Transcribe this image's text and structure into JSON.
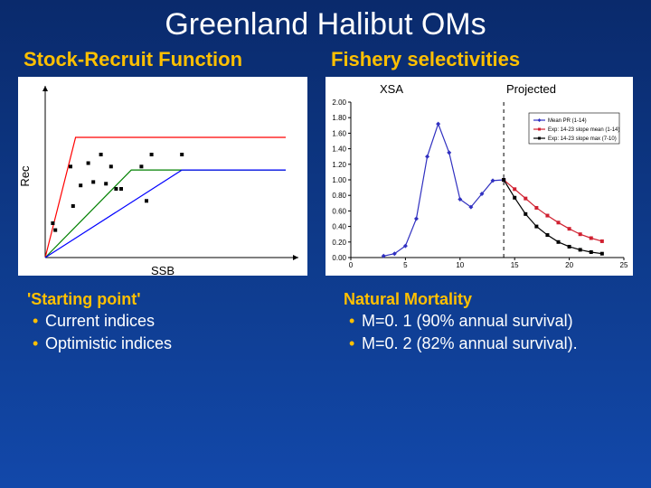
{
  "title": "Greenland Halibut OMs",
  "left": {
    "heading": "Stock-Recruit Function",
    "ylabel": "Rec",
    "xlabel": "SSB",
    "chart": {
      "type": "stock-recruit",
      "background": "#ffffff",
      "axis_color": "#000000",
      "xlim": [
        0,
        10
      ],
      "ylim": [
        0,
        10
      ],
      "points": {
        "marker": "square",
        "size": 4,
        "color": "#000000",
        "xy": [
          [
            0.3,
            2.0
          ],
          [
            0.4,
            1.6
          ],
          [
            1.0,
            5.3
          ],
          [
            1.1,
            3.0
          ],
          [
            1.4,
            4.2
          ],
          [
            1.7,
            5.5
          ],
          [
            1.9,
            4.4
          ],
          [
            2.2,
            6.0
          ],
          [
            2.4,
            4.3
          ],
          [
            2.6,
            5.3
          ],
          [
            2.8,
            4.0
          ],
          [
            3.0,
            4.0
          ],
          [
            3.8,
            5.3
          ],
          [
            4.0,
            3.3
          ],
          [
            4.2,
            6.0
          ],
          [
            5.4,
            6.0
          ]
        ]
      },
      "lines": [
        {
          "color": "#ff0000",
          "width": 1.2,
          "segments": [
            [
              0,
              0
            ],
            [
              1.2,
              7.0
            ],
            [
              9.5,
              7.0
            ]
          ]
        },
        {
          "color": "#008000",
          "width": 1.2,
          "segments": [
            [
              0,
              0
            ],
            [
              3.4,
              5.1
            ],
            [
              9.5,
              5.1
            ]
          ]
        },
        {
          "color": "#0000ff",
          "width": 1.2,
          "segments": [
            [
              0,
              0
            ],
            [
              5.4,
              5.1
            ],
            [
              9.5,
              5.1
            ]
          ]
        }
      ]
    }
  },
  "right": {
    "heading": "Fishery selectivities",
    "label_xsa": "XSA",
    "label_proj": "Projected",
    "chart": {
      "type": "line",
      "background": "#ffffff",
      "xlim": [
        0,
        25
      ],
      "ylim": [
        0,
        2.0
      ],
      "ytick_step": 0.2,
      "xticks": [
        0,
        5,
        10,
        15,
        20,
        25
      ],
      "divider_x": 14,
      "series": [
        {
          "name": "Mean PR (1-14)",
          "color": "#3030c0",
          "marker": "diamond",
          "xy": [
            [
              3,
              0.02
            ],
            [
              4,
              0.05
            ],
            [
              5,
              0.15
            ],
            [
              6,
              0.5
            ],
            [
              7,
              1.3
            ],
            [
              8,
              1.72
            ],
            [
              9,
              1.35
            ],
            [
              10,
              0.75
            ],
            [
              11,
              0.65
            ],
            [
              12,
              0.82
            ],
            [
              13,
              0.99
            ],
            [
              14,
              1.0
            ]
          ]
        },
        {
          "name": "Exp: 14-23 slope mean (1-14)",
          "color": "#d02030",
          "marker": "square",
          "xy": [
            [
              14,
              1.0
            ],
            [
              15,
              0.88
            ],
            [
              16,
              0.76
            ],
            [
              17,
              0.64
            ],
            [
              18,
              0.54
            ],
            [
              19,
              0.45
            ],
            [
              20,
              0.37
            ],
            [
              21,
              0.3
            ],
            [
              22,
              0.25
            ],
            [
              23,
              0.21
            ]
          ]
        },
        {
          "name": "Exp: 14-23 slope max (7-10)",
          "color": "#000000",
          "marker": "square",
          "xy": [
            [
              14,
              1.0
            ],
            [
              15,
              0.77
            ],
            [
              16,
              0.56
            ],
            [
              17,
              0.4
            ],
            [
              18,
              0.29
            ],
            [
              19,
              0.2
            ],
            [
              20,
              0.14
            ],
            [
              21,
              0.1
            ],
            [
              22,
              0.07
            ],
            [
              23,
              0.05
            ]
          ]
        }
      ],
      "legend": {
        "pos": "top-right"
      }
    }
  },
  "bottom_left": {
    "heading": "'Starting point'",
    "items": [
      "Current indices",
      "Optimistic indices"
    ]
  },
  "bottom_right": {
    "heading": "Natural Mortality",
    "items": [
      "M=0. 1 (90% annual survival)",
      "M=0. 2 (82% annual survival)."
    ]
  },
  "bullet_glyph": "•",
  "bullet_color": "#ffc000"
}
